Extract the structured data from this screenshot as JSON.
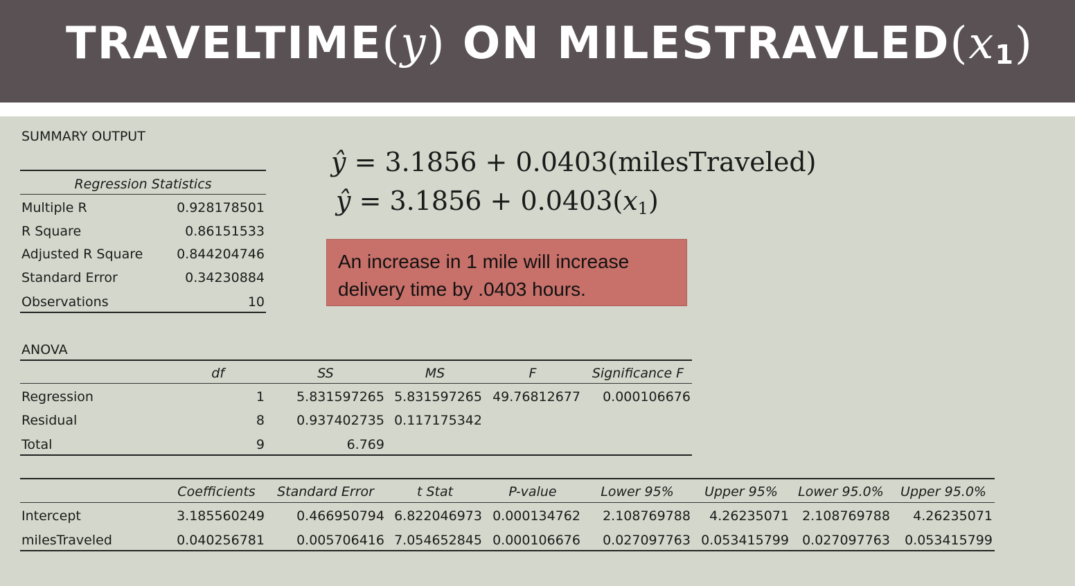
{
  "title": {
    "word1": "TRAVELTIME",
    "var1": "y",
    "word2": "ON",
    "word3": "MILESTRAVLED",
    "var2": "x",
    "var2_sub": "1"
  },
  "equations": {
    "eq1_rhs": "= 3.1856 + 0.0403(milesTraveled)",
    "eq2_rhs": "= 3.1856 + 0.0403(",
    "eq2_var": "x",
    "eq2_sub": "1",
    "eq2_close": ")",
    "yhat": "ŷ"
  },
  "callout": {
    "line1": "An increase in 1 mile will increase",
    "line2": "delivery time by .0403 hours."
  },
  "summary": {
    "heading": "SUMMARY OUTPUT",
    "stats_header": "Regression Statistics",
    "rows": [
      {
        "label": "Multiple R",
        "value": "0.928178501"
      },
      {
        "label": "R Square",
        "value": "0.86151533"
      },
      {
        "label": "Adjusted R Square",
        "value": "0.844204746"
      },
      {
        "label": "Standard Error",
        "value": "0.34230884"
      },
      {
        "label": "Observations",
        "value": "10"
      }
    ]
  },
  "anova": {
    "heading": "ANOVA",
    "columns": [
      "df",
      "SS",
      "MS",
      "F",
      "Significance F"
    ],
    "rows": [
      {
        "label": "Regression",
        "df": "1",
        "ss": "5.831597265",
        "ms": "5.831597265",
        "f": "49.76812677",
        "sig": "0.000106676"
      },
      {
        "label": "Residual",
        "df": "8",
        "ss": "0.937402735",
        "ms": "0.117175342",
        "f": "",
        "sig": ""
      },
      {
        "label": "Total",
        "df": "9",
        "ss": "6.769",
        "ms": "",
        "f": "",
        "sig": ""
      }
    ]
  },
  "coefficients": {
    "columns": [
      "Coefficients",
      "Standard Error",
      "t Stat",
      "P-value",
      "Lower 95%",
      "Upper 95%",
      "Lower 95.0%",
      "Upper 95.0%"
    ],
    "rows": [
      {
        "label": "Intercept",
        "values": [
          "3.185560249",
          "0.466950794",
          "6.822046973",
          "0.000134762",
          "2.108769788",
          "4.26235071",
          "2.108769788",
          "4.26235071"
        ]
      },
      {
        "label": "milesTraveled",
        "values": [
          "0.040256781",
          "0.005706416",
          "7.054652845",
          "0.000106676",
          "0.027097763",
          "0.053415799",
          "0.027097763",
          "0.053415799"
        ]
      }
    ]
  }
}
